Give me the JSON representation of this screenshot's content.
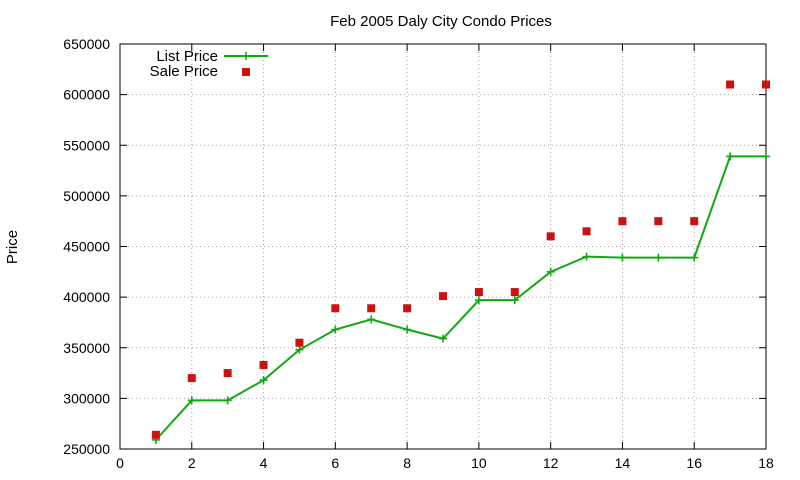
{
  "chart_data": {
    "type": "line",
    "title": "Feb 2005 Daly City Condo Prices",
    "xlabel": "",
    "ylabel": "Price",
    "xlim": [
      0,
      18
    ],
    "ylim": [
      250000,
      650000
    ],
    "xticks": [
      0,
      2,
      4,
      6,
      8,
      10,
      12,
      14,
      16,
      18
    ],
    "yticks": [
      250000,
      300000,
      350000,
      400000,
      450000,
      500000,
      550000,
      600000,
      650000
    ],
    "grid": true,
    "legend_position": "top-left",
    "series": [
      {
        "name": "List Price",
        "style": "linespoints",
        "marker": "plus",
        "color": "#11a811",
        "points": [
          {
            "x": 1,
            "y": 259000
          },
          {
            "x": 2,
            "y": 298000
          },
          {
            "x": 3,
            "y": 298000
          },
          {
            "x": 4,
            "y": 318000
          },
          {
            "x": 5,
            "y": 348000
          },
          {
            "x": 6,
            "y": 368000
          },
          {
            "x": 7,
            "y": 378000
          },
          {
            "x": 8,
            "y": 368000
          },
          {
            "x": 9,
            "y": 359000
          },
          {
            "x": 10,
            "y": 397000
          },
          {
            "x": 11,
            "y": 397000
          },
          {
            "x": 12,
            "y": 425000
          },
          {
            "x": 13,
            "y": 440000
          },
          {
            "x": 14,
            "y": 439000
          },
          {
            "x": 15,
            "y": 439000
          },
          {
            "x": 16,
            "y": 439000
          },
          {
            "x": 17,
            "y": 539000
          },
          {
            "x": 18,
            "y": 539000
          }
        ]
      },
      {
        "name": "Sale Price",
        "style": "points",
        "marker": "square",
        "color": "#cc1111",
        "points": [
          {
            "x": 1,
            "y": 264000
          },
          {
            "x": 2,
            "y": 320000
          },
          {
            "x": 3,
            "y": 325000
          },
          {
            "x": 4,
            "y": 333000
          },
          {
            "x": 5,
            "y": 355000
          },
          {
            "x": 6,
            "y": 389000
          },
          {
            "x": 7,
            "y": 389000
          },
          {
            "x": 8,
            "y": 389000
          },
          {
            "x": 9,
            "y": 401000
          },
          {
            "x": 10,
            "y": 405000
          },
          {
            "x": 11,
            "y": 405000
          },
          {
            "x": 12,
            "y": 460000
          },
          {
            "x": 13,
            "y": 465000
          },
          {
            "x": 14,
            "y": 475000
          },
          {
            "x": 15,
            "y": 475000
          },
          {
            "x": 16,
            "y": 475000
          },
          {
            "x": 17,
            "y": 610000
          },
          {
            "x": 18,
            "y": 610000
          }
        ]
      }
    ]
  }
}
